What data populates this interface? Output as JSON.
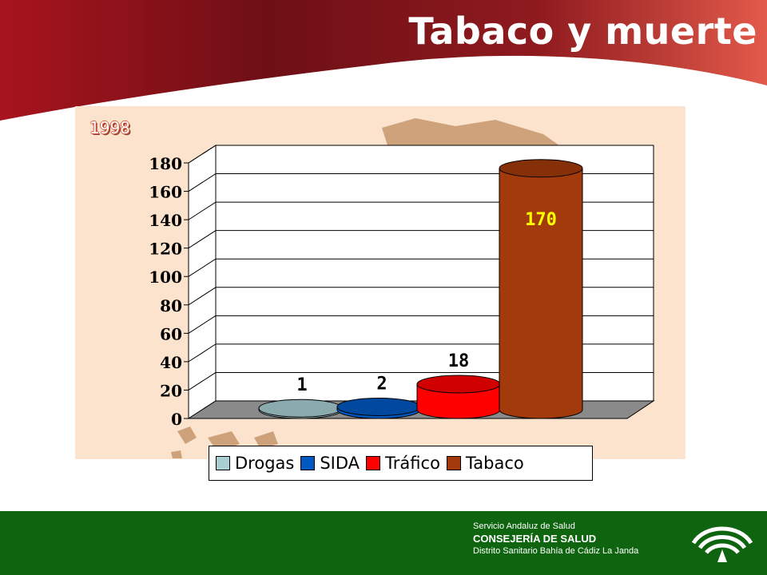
{
  "slide": {
    "title": "Tabaco y muerte",
    "year": "1998"
  },
  "colors": {
    "header_dark": "#5c0d14",
    "header_red": "#b11a22",
    "panel_bg": "#fbe3cd",
    "map": "#c99b73",
    "footer_green": "#0f650f"
  },
  "chart_data": {
    "type": "bar",
    "style": "3d-cylinder",
    "categories": [
      "Drogas",
      "SIDA",
      "Tráfico",
      "Tabaco"
    ],
    "values": [
      1,
      2,
      18,
      170
    ],
    "data_labels": [
      "1",
      "2",
      "18",
      "170"
    ],
    "series_colors": [
      "#a9cfd3",
      "#0059c2",
      "#ff0000",
      "#a33a0b"
    ],
    "ylim": [
      0,
      180
    ],
    "yticks": [
      "0",
      "20",
      "40",
      "60",
      "80",
      "100",
      "120",
      "140",
      "160",
      "180"
    ],
    "grid": true,
    "legend_position": "bottom"
  },
  "footer": {
    "org": "Servicio Andaluz de Salud",
    "dept": "CONSEJERÍA DE SALUD",
    "district": "Distrito Sanitario Bahía de Cádiz  La  Janda",
    "logo_icon": "junta-andalucia-logo-icon"
  }
}
